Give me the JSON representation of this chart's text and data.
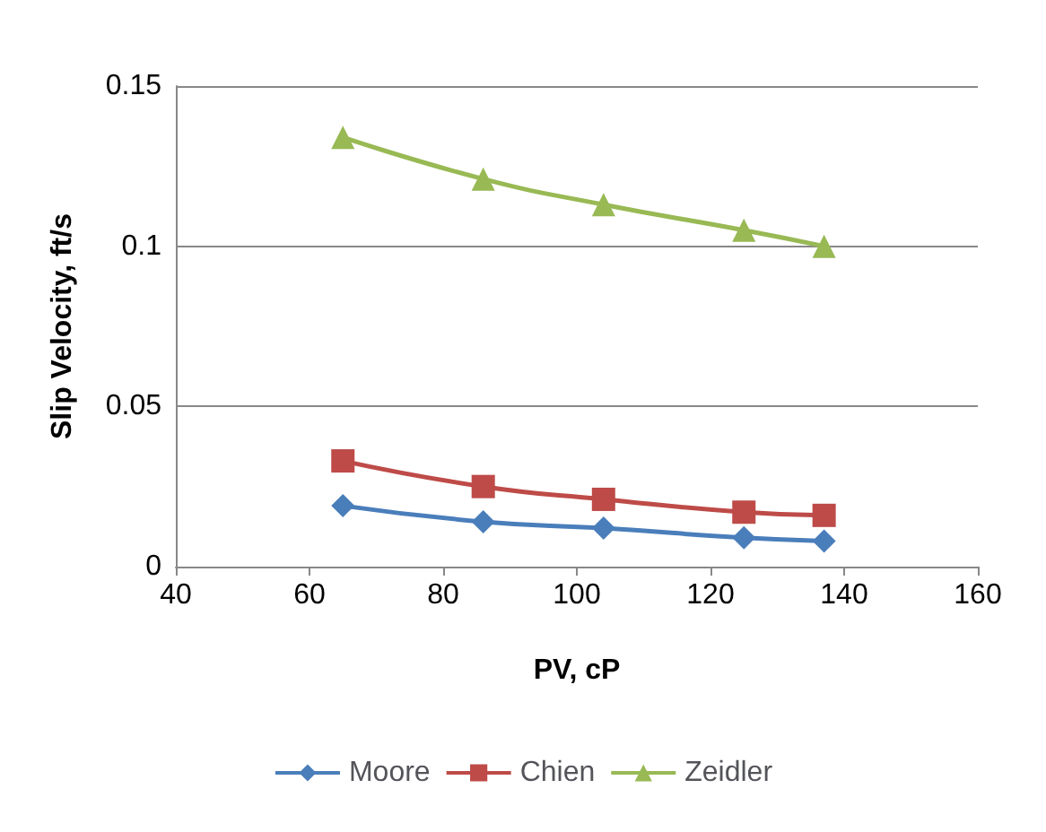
{
  "chart_data": {
    "type": "line",
    "xlabel": "PV, cP",
    "ylabel": "Slip Velocity, ft/s",
    "x": [
      65,
      86,
      104,
      125,
      137
    ],
    "series": [
      {
        "name": "Moore",
        "color": "#4a7ebb",
        "marker": "diamond",
        "values": [
          0.019,
          0.014,
          0.012,
          0.009,
          0.008
        ]
      },
      {
        "name": "Chien",
        "color": "#be4b48",
        "marker": "square",
        "values": [
          0.033,
          0.025,
          0.021,
          0.017,
          0.016
        ]
      },
      {
        "name": "Zeidler",
        "color": "#98b954",
        "marker": "triangle",
        "values": [
          0.134,
          0.121,
          0.113,
          0.105,
          0.1
        ]
      }
    ],
    "xlim": [
      40,
      160
    ],
    "xticks": [
      40,
      60,
      80,
      100,
      120,
      140,
      160
    ],
    "ylim": [
      0,
      0.15
    ],
    "yticks": [
      0,
      0.05,
      0.1,
      0.15
    ],
    "grid": "y",
    "legend": "bottom"
  }
}
